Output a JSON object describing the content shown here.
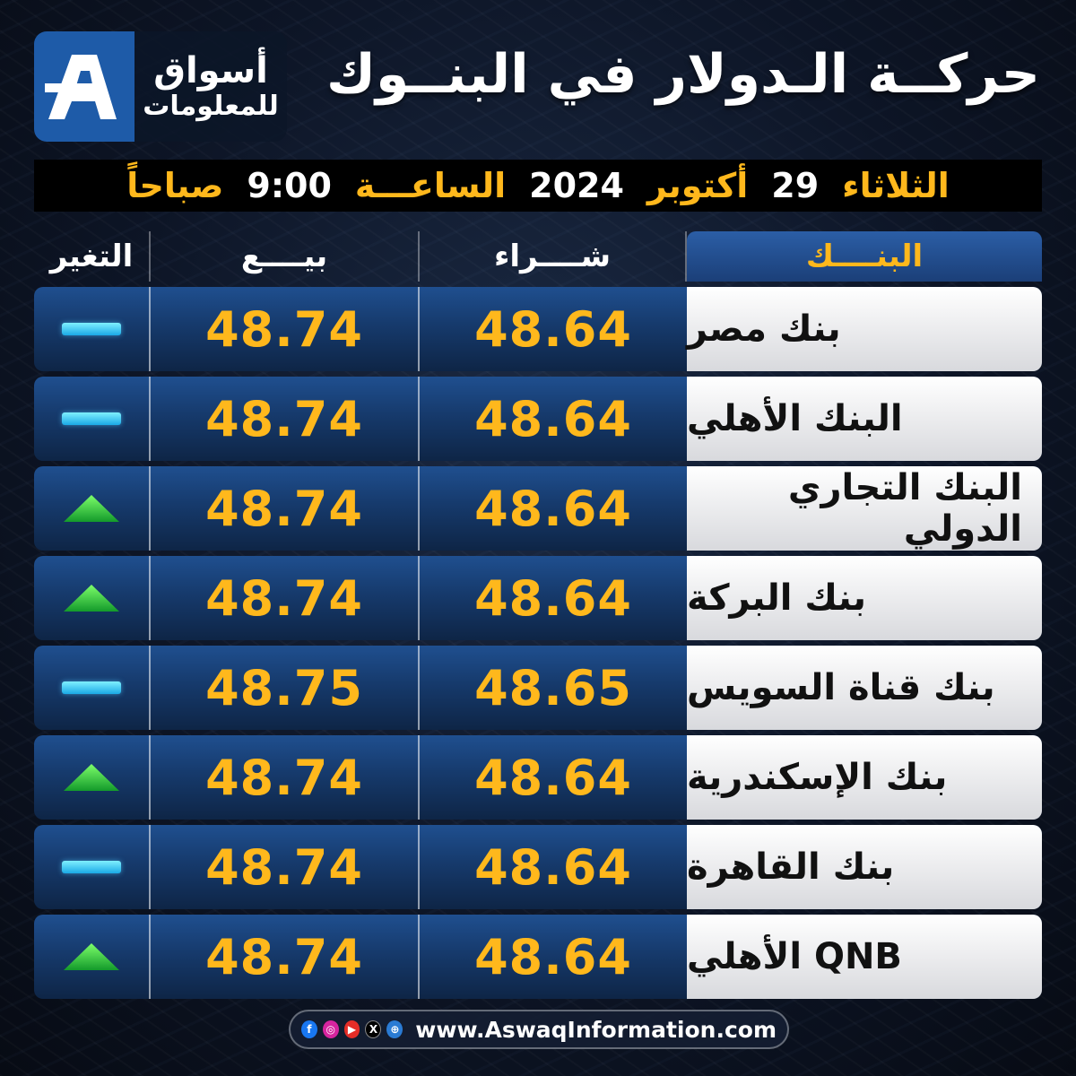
{
  "logo": {
    "line1": "أسواق",
    "line2": "للمعلومات"
  },
  "title": "حركــة الـدولار في البنــوك",
  "date": {
    "day": "الثلاثاء",
    "day_num": "29",
    "month": "أكتوبر",
    "year": "2024",
    "time_label": "الساعـــة",
    "time": "9:00",
    "period": "صباحاً"
  },
  "header": {
    "bank": "البنــــك",
    "buy": "شــــراء",
    "sell": "بيــــع",
    "change": "التغير"
  },
  "rows": [
    {
      "bank": "بنك مصر",
      "buy": "48.64",
      "sell": "48.74",
      "change": "unchanged"
    },
    {
      "bank": "البنك الأهلي",
      "buy": "48.64",
      "sell": "48.74",
      "change": "unchanged"
    },
    {
      "bank": "البنك التجاري الدولي",
      "buy": "48.64",
      "sell": "48.74",
      "change": "up"
    },
    {
      "bank": "بنك البركة",
      "buy": "48.64",
      "sell": "48.74",
      "change": "up"
    },
    {
      "bank": "بنك قناة السويس",
      "buy": "48.65",
      "sell": "48.75",
      "change": "unchanged"
    },
    {
      "bank": "بنك الإسكندرية",
      "buy": "48.64",
      "sell": "48.74",
      "change": "up"
    },
    {
      "bank": "بنك القاهرة",
      "buy": "48.64",
      "sell": "48.74",
      "change": "unchanged"
    },
    {
      "bank": "QNB الأهلي",
      "buy": "48.64",
      "sell": "48.74",
      "change": "up"
    }
  ],
  "footer": {
    "url": "www.AswaqInformation.com",
    "icons": [
      "facebook-icon",
      "instagram-icon",
      "youtube-icon",
      "x-icon",
      "globe-icon"
    ]
  },
  "colors": {
    "gold": "#ffb81c",
    "brand_blue": "#1e5ba8",
    "up_green": "#22c43a",
    "unchanged_cyan": "#1aa9e6"
  }
}
